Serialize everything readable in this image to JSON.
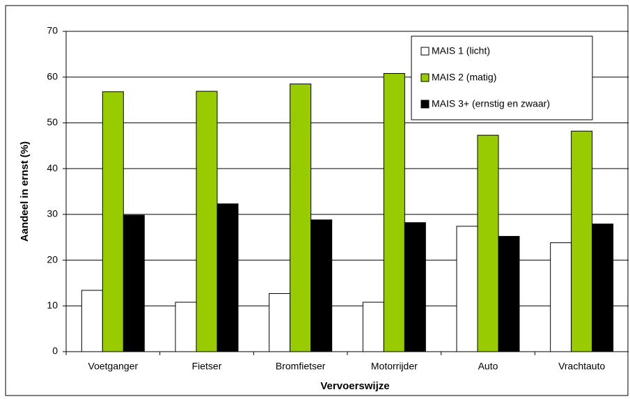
{
  "chart_data": {
    "type": "bar",
    "xlabel": "Vervoerswijze",
    "ylabel": "Aandeel in ernst (%)",
    "categories": [
      "Voetganger",
      "Fietser",
      "Bromfietser",
      "Motorrijder",
      "Auto",
      "Vrachtauto"
    ],
    "series": [
      {
        "name": "MAIS 1 (licht)",
        "color": "#ffffff",
        "values": [
          13.4,
          10.8,
          12.7,
          10.8,
          27.4,
          23.8
        ]
      },
      {
        "name": "MAIS 2 (matig)",
        "color": "#99cc00",
        "values": [
          56.8,
          56.9,
          58.5,
          60.8,
          47.3,
          48.2
        ]
      },
      {
        "name": "MAIS 3+ (ernstig en zwaar)",
        "color": "#000000",
        "values": [
          29.8,
          32.3,
          28.8,
          28.2,
          25.2,
          27.9
        ]
      }
    ],
    "ylim": [
      0,
      70
    ],
    "yticks": [
      0,
      10,
      20,
      30,
      40,
      50,
      60,
      70
    ],
    "grid": true,
    "legend": "top-right"
  }
}
